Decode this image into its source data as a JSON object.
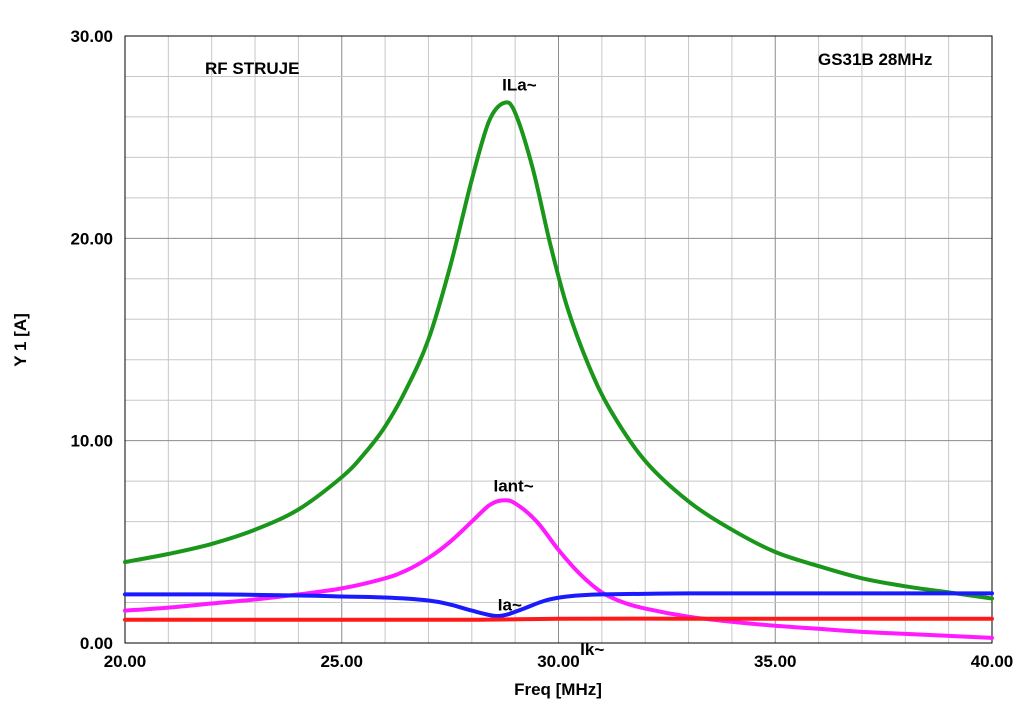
{
  "chart_data": {
    "type": "line",
    "title": "RF STRUJE",
    "subtitle": "GS31B 28MHz",
    "xlabel": "Freq [MHz]",
    "ylabel": "Y 1  [A]",
    "xlim": [
      20,
      40
    ],
    "ylim": [
      0,
      30
    ],
    "xticks": [
      "20.00",
      "25.00",
      "30.00",
      "35.00",
      "40.00"
    ],
    "yticks": [
      "0.00",
      "10.00",
      "20.00",
      "30.00"
    ],
    "grid": true,
    "series": [
      {
        "name": "ILa~",
        "color": "#1a961a",
        "label_at": [
          28.7,
          27.3
        ],
        "points": [
          [
            20.0,
            4.0
          ],
          [
            21.0,
            4.4
          ],
          [
            22.0,
            4.9
          ],
          [
            23.0,
            5.6
          ],
          [
            24.0,
            6.6
          ],
          [
            25.0,
            8.2
          ],
          [
            25.5,
            9.3
          ],
          [
            26.0,
            10.7
          ],
          [
            26.5,
            12.6
          ],
          [
            27.0,
            15.0
          ],
          [
            27.5,
            18.6
          ],
          [
            28.0,
            22.9
          ],
          [
            28.4,
            25.8
          ],
          [
            28.75,
            26.7
          ],
          [
            29.0,
            26.2
          ],
          [
            29.4,
            23.5
          ],
          [
            29.8,
            19.8
          ],
          [
            30.2,
            16.6
          ],
          [
            30.7,
            13.7
          ],
          [
            31.2,
            11.5
          ],
          [
            32.0,
            9.0
          ],
          [
            33.0,
            7.0
          ],
          [
            34.0,
            5.6
          ],
          [
            35.0,
            4.5
          ],
          [
            36.0,
            3.8
          ],
          [
            37.0,
            3.2
          ],
          [
            38.0,
            2.8
          ],
          [
            39.0,
            2.5
          ],
          [
            40.0,
            2.2
          ]
        ]
      },
      {
        "name": "Iant~",
        "color": "#ff1aff",
        "label_at": [
          28.5,
          7.5
        ],
        "points": [
          [
            20.0,
            1.6
          ],
          [
            21.0,
            1.75
          ],
          [
            22.0,
            1.95
          ],
          [
            23.0,
            2.15
          ],
          [
            24.0,
            2.4
          ],
          [
            25.0,
            2.7
          ],
          [
            26.0,
            3.2
          ],
          [
            26.5,
            3.6
          ],
          [
            27.0,
            4.2
          ],
          [
            27.5,
            5.0
          ],
          [
            28.0,
            6.0
          ],
          [
            28.4,
            6.8
          ],
          [
            28.7,
            7.05
          ],
          [
            29.0,
            6.9
          ],
          [
            29.5,
            6.0
          ],
          [
            30.0,
            4.6
          ],
          [
            30.5,
            3.4
          ],
          [
            31.0,
            2.5
          ],
          [
            31.5,
            2.0
          ],
          [
            32.0,
            1.7
          ],
          [
            33.0,
            1.3
          ],
          [
            34.0,
            1.05
          ],
          [
            35.0,
            0.85
          ],
          [
            36.0,
            0.7
          ],
          [
            37.0,
            0.55
          ],
          [
            38.0,
            0.45
          ],
          [
            39.0,
            0.35
          ],
          [
            40.0,
            0.25
          ]
        ]
      },
      {
        "name": "Ia~",
        "color": "#1a1aff",
        "label_at": [
          28.6,
          1.6
        ],
        "points": [
          [
            20.0,
            2.4
          ],
          [
            22.0,
            2.4
          ],
          [
            24.0,
            2.35
          ],
          [
            25.0,
            2.3
          ],
          [
            26.0,
            2.25
          ],
          [
            27.0,
            2.1
          ],
          [
            27.5,
            1.9
          ],
          [
            28.0,
            1.6
          ],
          [
            28.5,
            1.35
          ],
          [
            28.8,
            1.4
          ],
          [
            29.2,
            1.7
          ],
          [
            29.7,
            2.1
          ],
          [
            30.2,
            2.3
          ],
          [
            31.0,
            2.4
          ],
          [
            33.0,
            2.45
          ],
          [
            35.0,
            2.45
          ],
          [
            37.0,
            2.45
          ],
          [
            40.0,
            2.45
          ]
        ]
      },
      {
        "name": "Ik~",
        "color": "#ff1a1a",
        "label_at": [
          30.5,
          -0.6
        ],
        "points": [
          [
            20.0,
            1.15
          ],
          [
            25.0,
            1.15
          ],
          [
            28.0,
            1.15
          ],
          [
            30.0,
            1.2
          ],
          [
            33.0,
            1.2
          ],
          [
            36.0,
            1.2
          ],
          [
            40.0,
            1.2
          ]
        ]
      }
    ]
  }
}
